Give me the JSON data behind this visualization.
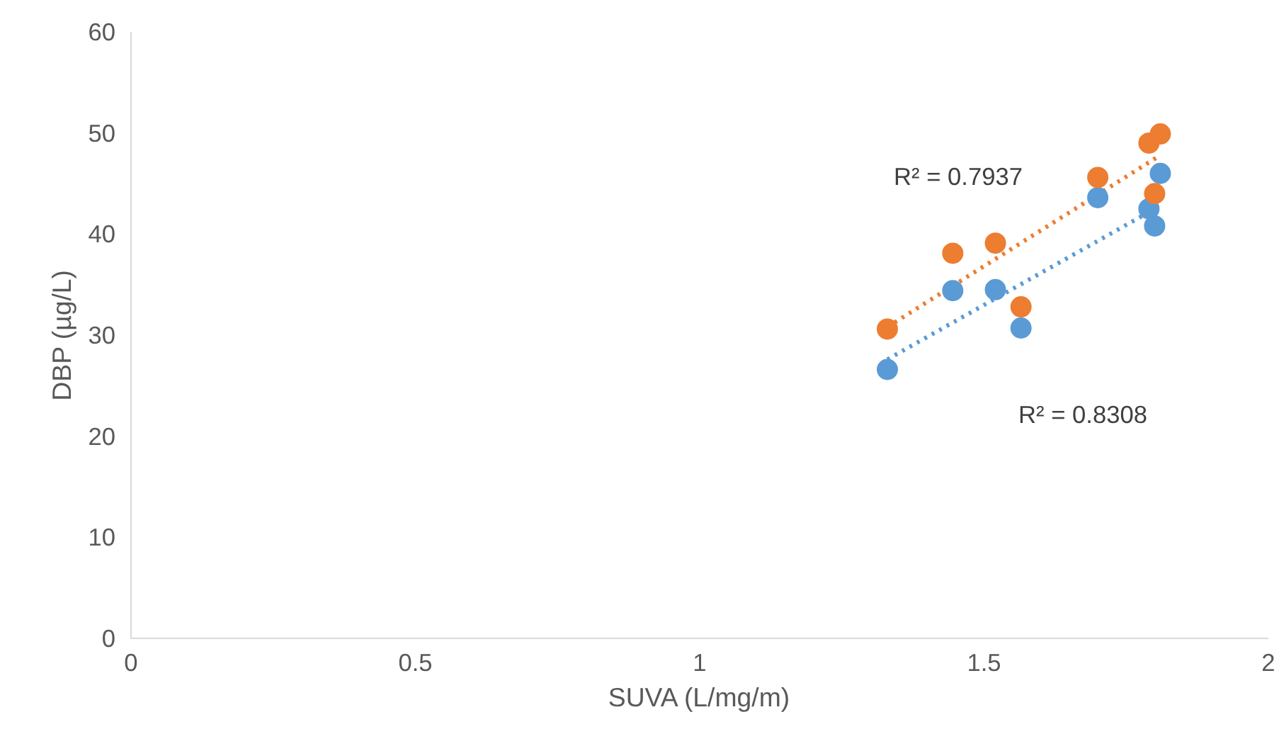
{
  "chart_data": {
    "type": "scatter",
    "xlabel": "SUVA (L/mg/m)",
    "ylabel": "DBP (µg/L)",
    "xlim": [
      0,
      2
    ],
    "ylim": [
      0,
      60
    ],
    "xticks": [
      0,
      0.5,
      1,
      1.5,
      2
    ],
    "yticks": [
      0,
      10,
      20,
      30,
      40,
      50,
      60
    ],
    "marker": "circle",
    "series": [
      {
        "color": "#5b9bd5",
        "x": [
          1.33,
          1.445,
          1.52,
          1.565,
          1.7,
          1.79,
          1.8,
          1.81
        ],
        "values": [
          26.6,
          34.4,
          34.5,
          30.7,
          43.6,
          42.5,
          40.8,
          46.0
        ]
      },
      {
        "color": "#ed7d31",
        "x": [
          1.33,
          1.445,
          1.52,
          1.565,
          1.7,
          1.79,
          1.8,
          1.81
        ],
        "values": [
          30.6,
          38.1,
          39.1,
          32.8,
          45.6,
          49.0,
          44.0,
          49.9
        ]
      },
      {
        "type": "line",
        "line_style": "dotted",
        "marker": "none",
        "color": "#5b9bd5",
        "x": [
          1.33,
          1.81
        ],
        "values": [
          27.6,
          42.8
        ]
      },
      {
        "type": "line",
        "line_style": "dotted",
        "marker": "none",
        "color": "#ed7d31",
        "x": [
          1.33,
          1.81
        ],
        "values": [
          30.8,
          47.8
        ]
      }
    ],
    "annotations": [
      "R² = 0.7937",
      "R² = 0.8308"
    ]
  }
}
